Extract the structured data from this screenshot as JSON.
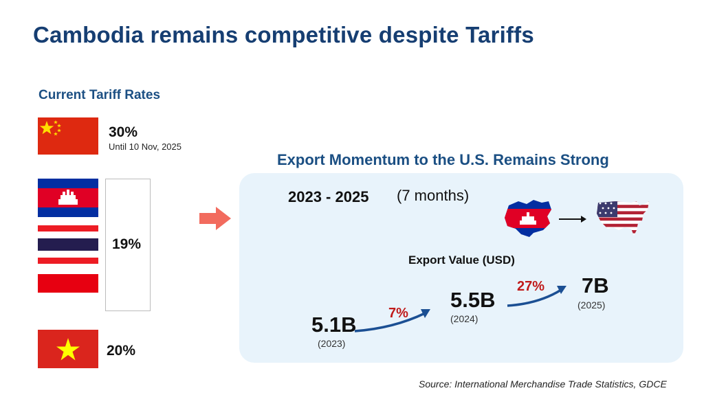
{
  "title": "Cambodia remains competitive despite Tariffs",
  "tariffs": {
    "heading": "Current Tariff Rates",
    "china": {
      "rate": "30%",
      "note": "Until 10 Nov, 2025",
      "flag_icon": "china-flag-icon"
    },
    "group": {
      "rate": "19%",
      "flag_icons": [
        "cambodia-flag-icon",
        "thailand-flag-icon",
        "indonesia-flag-icon"
      ]
    },
    "vietnam": {
      "rate": "20%",
      "flag_icon": "vietnam-flag-icon"
    }
  },
  "export": {
    "heading": "Export Momentum to the U.S. Remains Strong",
    "period": "2023 - 2025",
    "period_note": "(7 months)",
    "value_heading": "Export Value (USD)",
    "points": [
      {
        "value": "5.1B",
        "year": "(2023)"
      },
      {
        "value": "5.5B",
        "year": "(2024)"
      },
      {
        "value": "7B",
        "year": "(2025)"
      }
    ],
    "growth": [
      "7%",
      "27%"
    ],
    "map_icons": [
      "cambodia-map-icon",
      "usa-map-icon"
    ]
  },
  "source": "Source: International Merchandise Trade Statistics, GDCE",
  "colors": {
    "title": "#163e72",
    "heading": "#1b4f83",
    "growth": "#c01a1a",
    "panel": "#e8f3fb",
    "arrow": "#f26b5e"
  }
}
